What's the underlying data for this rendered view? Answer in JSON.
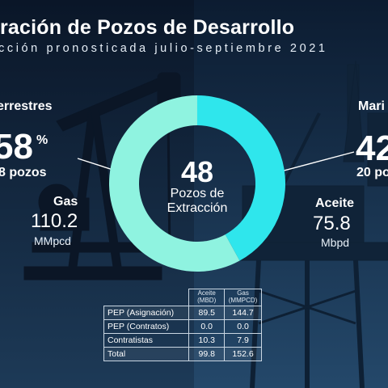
{
  "header": {
    "title": "ración de Pozos de Desarrollo",
    "subtitle": "cción pronosticada julio-septiembre 2021"
  },
  "left": {
    "section": "errestres",
    "percent": "58",
    "percent_sign": "%",
    "wells": "8 pozos",
    "metric_name": "Gas",
    "metric_value": "110.2",
    "metric_unit": "MMpcd"
  },
  "right": {
    "section": "Mari",
    "percent": "42",
    "wells": "20 po",
    "metric_name": "Aceite",
    "metric_value": "75.8",
    "metric_unit": "Mbpd"
  },
  "center": {
    "total": "48",
    "line1": "Pozos de",
    "line2": "Extracción"
  },
  "donut": {
    "share_marinos": 0.42,
    "share_terrestres": 0.58,
    "color_marinos": "#2fe6ec",
    "color_terrestres": "#8ff3e0"
  },
  "table": {
    "headers": [
      "Aceite (MBD)",
      "Gas (MMPCD)"
    ],
    "rows": [
      {
        "label": "PEP (Asignación)",
        "aceite": "89.5",
        "gas": "144.7"
      },
      {
        "label": "PEP (Contratos)",
        "aceite": "0.0",
        "gas": "0.0"
      },
      {
        "label": "Contratistas",
        "aceite": "10.3",
        "gas": "7.9"
      },
      {
        "label": "Total",
        "aceite": "99.8",
        "gas": "152.6"
      }
    ]
  }
}
